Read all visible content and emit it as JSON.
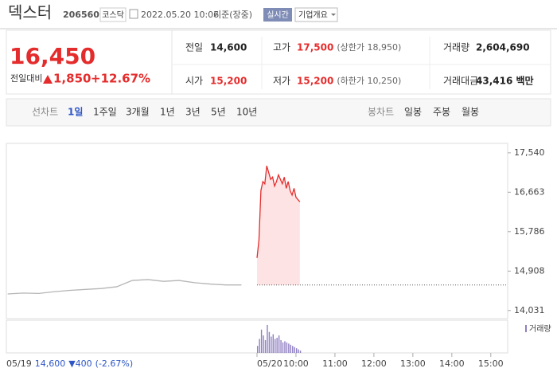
{
  "header": {
    "name": "덱스터",
    "code": "206560",
    "market": "코스닥",
    "datetime": "2022.05.20 10:06",
    "basis": "기준(장중)",
    "realtime": "실시간",
    "company_info": "기업개요"
  },
  "price": {
    "current": "16,450",
    "change_label": "전일대비",
    "change": "1,850",
    "rate": "+12.67%"
  },
  "stats": [
    {
      "label": "전일",
      "value": "14,600"
    },
    {
      "label": "고가",
      "value": "17,500",
      "note": "(상한가 18,950)"
    },
    {
      "label": "거래량",
      "value": "2,604,690"
    },
    {
      "label": "시가",
      "value": "15,200"
    },
    {
      "label": "저가",
      "value": "15,200",
      "note": "(하한가 10,250)"
    },
    {
      "label": "거래대금",
      "value": "43,416 백만"
    }
  ],
  "tabs": {
    "line_label": "선차트",
    "line": [
      "1일",
      "1주일",
      "3개월",
      "1년",
      "3년",
      "5년",
      "10년"
    ],
    "candle_label": "봉차트",
    "candle": [
      "일봉",
      "주봉",
      "월봉"
    ]
  },
  "chart": {
    "type": "line",
    "xlim": [
      -386,
      386
    ],
    "ylim": [
      13850,
      17750
    ],
    "yticks": [
      {
        "value": 17540,
        "label": "17,540"
      },
      {
        "value": 16663,
        "label": "16,663"
      },
      {
        "value": 15786,
        "label": "15,786"
      },
      {
        "value": 14908,
        "label": "14,908"
      },
      {
        "value": 14031,
        "label": "14,031"
      }
    ],
    "xticks": [
      {
        "value": 0,
        "label": "05/20"
      },
      {
        "value": 60,
        "label": "10:00"
      },
      {
        "value": 120,
        "label": "11:00"
      },
      {
        "value": 180,
        "label": "12:00"
      },
      {
        "value": 240,
        "label": "13:00"
      },
      {
        "value": 300,
        "label": "14:00"
      },
      {
        "value": 360,
        "label": "15:00"
      }
    ],
    "baseline": 14600,
    "previous": {
      "color": "#b5b5b5",
      "x": [
        -384,
        -360,
        -336,
        -312,
        -288,
        -264,
        -240,
        -216,
        -192,
        -168,
        -144,
        -120,
        -96,
        -72,
        -48,
        -24
      ],
      "values": [
        14400,
        14420,
        14410,
        14450,
        14480,
        14500,
        14520,
        14560,
        14700,
        14720,
        14680,
        14700,
        14650,
        14620,
        14600,
        14600
      ]
    },
    "today": {
      "color": "#e52c2c",
      "fill": "#fde3e3",
      "x": [
        0,
        3,
        6,
        9,
        12,
        15,
        18,
        21,
        24,
        27,
        30,
        33,
        36,
        39,
        42,
        45,
        48,
        51,
        54,
        57,
        60,
        63,
        66
      ],
      "values": [
        15200,
        15600,
        16700,
        16900,
        16850,
        17250,
        17100,
        16950,
        17000,
        16800,
        16900,
        17050,
        16950,
        16850,
        17000,
        16750,
        16900,
        16700,
        16600,
        16750,
        16550,
        16500,
        16450
      ]
    },
    "volume": {
      "name": "거래량",
      "color": "#8f7fc2",
      "ylim": [
        0,
        260000
      ],
      "values": [
        60000,
        120000,
        200000,
        150000,
        110000,
        240000,
        180000,
        140000,
        160000,
        120000,
        130000,
        150000,
        110000,
        90000,
        100000,
        90000,
        80000,
        70000,
        60000,
        50000,
        40000,
        30000,
        20000
      ]
    },
    "footer": {
      "date": "05/19",
      "price": "14,600",
      "change": "▼400",
      "rate": "(-2.67%)"
    }
  }
}
